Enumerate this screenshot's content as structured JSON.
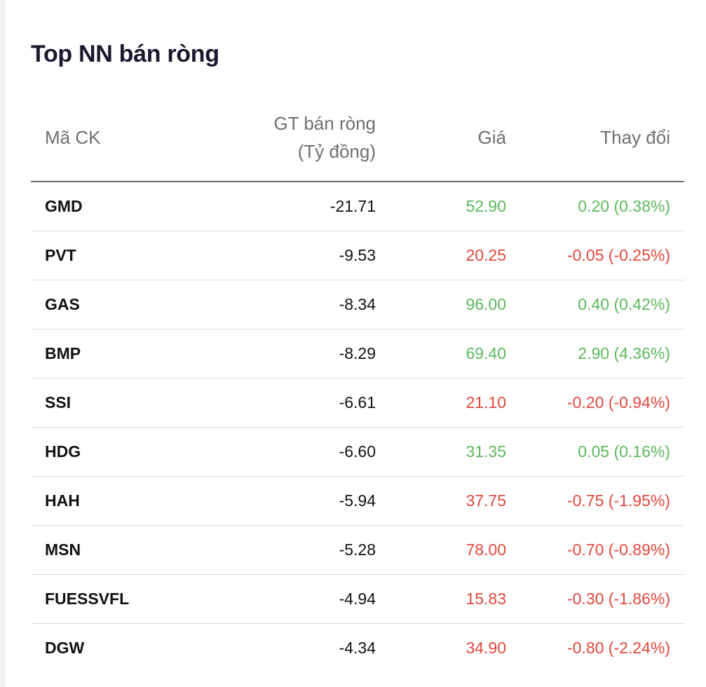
{
  "title": "Top NN bán ròng",
  "columns": {
    "code": "Mã CK",
    "value_line1": "GT bán ròng",
    "value_line2": "(Tỷ đồng)",
    "price": "Giá",
    "change": "Thay đổi"
  },
  "colors": {
    "up": "#5cb85c",
    "down": "#e0483d"
  },
  "rows": [
    {
      "code": "GMD",
      "value": "-21.71",
      "price": "52.90",
      "change": "0.20 (0.38%)",
      "dir": "up"
    },
    {
      "code": "PVT",
      "value": "-9.53",
      "price": "20.25",
      "change": "-0.05 (-0.25%)",
      "dir": "down"
    },
    {
      "code": "GAS",
      "value": "-8.34",
      "price": "96.00",
      "change": "0.40 (0.42%)",
      "dir": "up"
    },
    {
      "code": "BMP",
      "value": "-8.29",
      "price": "69.40",
      "change": "2.90 (4.36%)",
      "dir": "up"
    },
    {
      "code": "SSI",
      "value": "-6.61",
      "price": "21.10",
      "change": "-0.20 (-0.94%)",
      "dir": "down"
    },
    {
      "code": "HDG",
      "value": "-6.60",
      "price": "31.35",
      "change": "0.05 (0.16%)",
      "dir": "up"
    },
    {
      "code": "HAH",
      "value": "-5.94",
      "price": "37.75",
      "change": "-0.75 (-1.95%)",
      "dir": "down"
    },
    {
      "code": "MSN",
      "value": "-5.28",
      "price": "78.00",
      "change": "-0.70 (-0.89%)",
      "dir": "down"
    },
    {
      "code": "FUESSVFL",
      "value": "-4.94",
      "price": "15.83",
      "change": "-0.30 (-1.86%)",
      "dir": "down"
    },
    {
      "code": "DGW",
      "value": "-4.34",
      "price": "34.90",
      "change": "-0.80 (-2.24%)",
      "dir": "down"
    }
  ]
}
